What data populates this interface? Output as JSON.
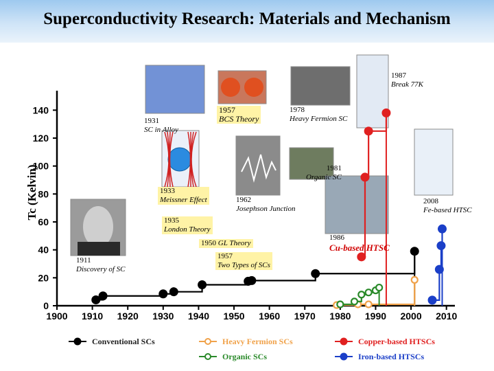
{
  "title": "Superconductivity Research: Materials and Mechanism",
  "chart_data": {
    "type": "line",
    "ylabel": "Tc (Kelvin)",
    "xlim": [
      1900,
      2012
    ],
    "ylim": [
      0,
      150
    ],
    "xticks": [
      1900,
      1910,
      1920,
      1930,
      1940,
      1950,
      1960,
      1970,
      1980,
      1990,
      2000,
      2010
    ],
    "yticks": [
      0,
      20,
      40,
      60,
      80,
      100,
      120,
      140
    ],
    "series": [
      {
        "name": "Conventional SCs",
        "color": "#000000",
        "style": "step-marker",
        "x": [
          1911,
          1913,
          1930,
          1933,
          1941,
          1954,
          1955,
          1973,
          2001
        ],
        "y": [
          4.2,
          7,
          8.5,
          10,
          15,
          17.5,
          18,
          23,
          39
        ]
      },
      {
        "name": "Heavy Fermion SCs",
        "color": "#f0a24a",
        "style": "step-open",
        "x": [
          1979,
          1985,
          1988,
          2001
        ],
        "y": [
          0.5,
          1,
          1,
          18.5
        ]
      },
      {
        "name": "Organic SCs",
        "color": "#2a8a2a",
        "style": "step-open",
        "x": [
          1980,
          1984,
          1986,
          1988,
          1990,
          1991
        ],
        "y": [
          1,
          3,
          8,
          9.5,
          11,
          13
        ]
      },
      {
        "name": "Copper-based HTSCs",
        "color": "#e02020",
        "style": "step-marker",
        "x": [
          1986,
          1987,
          1988,
          1993
        ],
        "y": [
          35,
          92,
          125,
          138
        ]
      },
      {
        "name": "Iron-based HTSCs",
        "color": "#1b3fc8",
        "style": "step-marker",
        "x": [
          2006,
          2008,
          2008.5,
          2008.8
        ],
        "y": [
          4,
          26,
          43,
          55
        ]
      }
    ],
    "annotations": [
      {
        "year": "1911",
        "text": "Discovery of SC"
      },
      {
        "year": "1931",
        "text": "SC in Alloy"
      },
      {
        "year": "1933",
        "text": "Meissner Effect"
      },
      {
        "year": "1935",
        "text": "London Theory"
      },
      {
        "year": "1950",
        "text": "GL Theory"
      },
      {
        "year": "1957",
        "text": "BCS Theory"
      },
      {
        "year": "1957",
        "text": "Two Types of SCs"
      },
      {
        "year": "1962",
        "text": "Josephson Junction"
      },
      {
        "year": "1978",
        "text": "Heavy Fermion SC"
      },
      {
        "year": "1981",
        "text": "Organic SC"
      },
      {
        "year": "1986",
        "text": "Cu-based HTSC"
      },
      {
        "year": "1987",
        "text": "Break 77K"
      },
      {
        "year": "2008",
        "text": "Fe-based HTSC"
      }
    ]
  },
  "photos": [
    {
      "name": "alloy-microstructure-photo",
      "caption": ""
    },
    {
      "name": "bcs-cooper-pair-photo",
      "caption": ""
    },
    {
      "name": "heavy-fermion-lattice-photo",
      "caption": ""
    },
    {
      "name": "cuprate-crystal-structure-photo",
      "caption": ""
    },
    {
      "name": "meissner-field-diagram",
      "caption": ""
    },
    {
      "name": "josephson-oscilloscope-photo",
      "caption": ""
    },
    {
      "name": "organic-molecule-photo",
      "caption": ""
    },
    {
      "name": "scientist-portrait-photo",
      "caption": ""
    },
    {
      "name": "htsc-discoverers-photo",
      "caption": ""
    },
    {
      "name": "iron-pnictide-structure-photo",
      "caption": ""
    }
  ]
}
